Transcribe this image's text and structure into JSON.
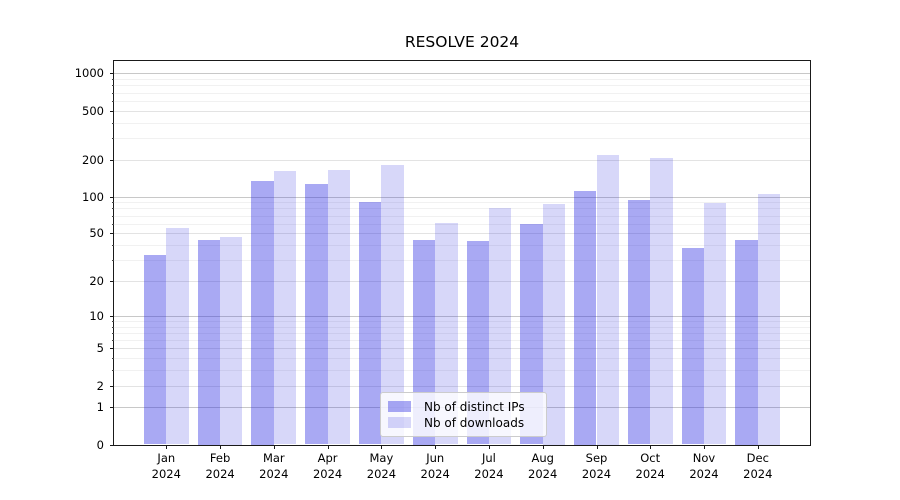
{
  "chart_data": {
    "type": "bar",
    "title": "RESOLVE 2024",
    "categories": [
      "Jan",
      "Feb",
      "Mar",
      "Apr",
      "May",
      "Jun",
      "Jul",
      "Aug",
      "Sep",
      "Oct",
      "Nov",
      "Dec"
    ],
    "year_label": "2024",
    "series": [
      {
        "name": "Nb of distinct IPs",
        "color": "#2828e1",
        "alpha": 0.4,
        "solid_color": "#a9a9f0",
        "values": [
          33,
          44,
          134,
          126,
          91,
          44,
          43,
          60,
          111,
          93,
          38,
          44
        ]
      },
      {
        "name": "Nb of downloads",
        "color": "#2828e1",
        "alpha": 0.185,
        "solid_color": "#d9d9f8",
        "values": [
          55,
          47,
          161,
          164,
          182,
          61,
          81,
          87,
          218,
          205,
          88,
          106
        ]
      }
    ],
    "yscale": "log1p",
    "yticks": [
      0,
      1,
      2,
      5,
      10,
      20,
      50,
      100,
      200,
      500,
      1000
    ],
    "ylim": [
      0,
      1259
    ],
    "xlabel": "",
    "ylabel": "",
    "grid": true,
    "legend_position": "lower center"
  }
}
